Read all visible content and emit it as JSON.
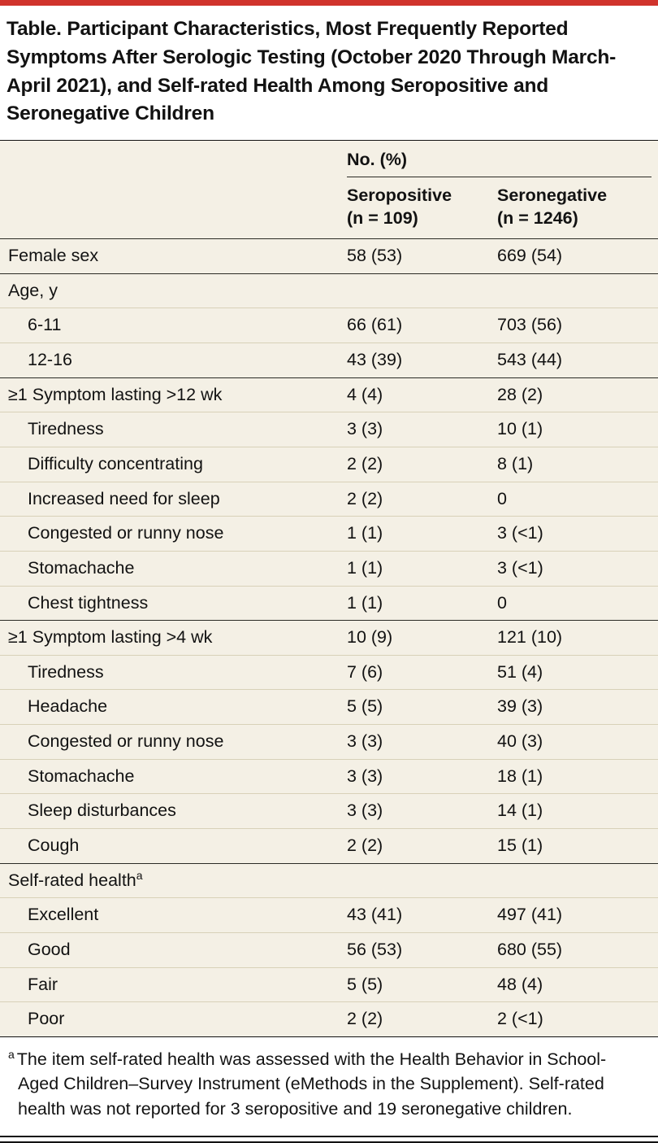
{
  "title": "Table. Participant Characteristics, Most Frequently Reported Symptoms After Serologic Testing (October 2020 Through March-April 2021), and Self-rated Health Among Seropositive and Seronegative Children",
  "table": {
    "group_header": "No. (%)",
    "columns": [
      {
        "label": "Seropositive\n(n = 109)"
      },
      {
        "label": "Seronegative\n(n = 1246)"
      }
    ],
    "rows": [
      {
        "label": "Female sex",
        "section": true,
        "indent": 0,
        "seropositive": "58 (53)",
        "seronegative": "669 (54)"
      },
      {
        "label": "Age, y",
        "section": true,
        "indent": 0,
        "seropositive": "",
        "seronegative": ""
      },
      {
        "label": "6-11",
        "section": false,
        "indent": 1,
        "seropositive": "66 (61)",
        "seronegative": "703 (56)"
      },
      {
        "label": "12-16",
        "section": false,
        "indent": 1,
        "seropositive": "43 (39)",
        "seronegative": "543 (44)"
      },
      {
        "label": "≥1 Symptom lasting >12 wk",
        "section": true,
        "indent": 0,
        "seropositive": "4 (4)",
        "seronegative": "28 (2)"
      },
      {
        "label": "Tiredness",
        "section": false,
        "indent": 1,
        "seropositive": "3 (3)",
        "seronegative": "10 (1)"
      },
      {
        "label": "Difficulty concentrating",
        "section": false,
        "indent": 1,
        "seropositive": "2 (2)",
        "seronegative": "8 (1)"
      },
      {
        "label": "Increased need for sleep",
        "section": false,
        "indent": 1,
        "seropositive": "2 (2)",
        "seronegative": "0"
      },
      {
        "label": "Congested or runny nose",
        "section": false,
        "indent": 1,
        "seropositive": "1 (1)",
        "seronegative": "3 (<1)"
      },
      {
        "label": "Stomachache",
        "section": false,
        "indent": 1,
        "seropositive": "1 (1)",
        "seronegative": "3 (<1)"
      },
      {
        "label": "Chest tightness",
        "section": false,
        "indent": 1,
        "seropositive": "1 (1)",
        "seronegative": "0"
      },
      {
        "label": "≥1 Symptom lasting >4 wk",
        "section": true,
        "indent": 0,
        "seropositive": "10 (9)",
        "seronegative": "121 (10)"
      },
      {
        "label": "Tiredness",
        "section": false,
        "indent": 1,
        "seropositive": "7 (6)",
        "seronegative": "51 (4)"
      },
      {
        "label": "Headache",
        "section": false,
        "indent": 1,
        "seropositive": "5 (5)",
        "seronegative": "39 (3)"
      },
      {
        "label": "Congested or runny nose",
        "section": false,
        "indent": 1,
        "seropositive": "3 (3)",
        "seronegative": "40 (3)"
      },
      {
        "label": "Stomachache",
        "section": false,
        "indent": 1,
        "seropositive": "3 (3)",
        "seronegative": "18 (1)"
      },
      {
        "label": "Sleep disturbances",
        "section": false,
        "indent": 1,
        "seropositive": "3 (3)",
        "seronegative": "14 (1)"
      },
      {
        "label": "Cough",
        "section": false,
        "indent": 1,
        "seropositive": "2 (2)",
        "seronegative": "15 (1)"
      },
      {
        "label": "Self-rated health",
        "sup": "a",
        "section": true,
        "indent": 0,
        "seropositive": "",
        "seronegative": ""
      },
      {
        "label": "Excellent",
        "section": false,
        "indent": 1,
        "seropositive": "43 (41)",
        "seronegative": "497 (41)"
      },
      {
        "label": "Good",
        "section": false,
        "indent": 1,
        "seropositive": "56 (53)",
        "seronegative": "680 (55)"
      },
      {
        "label": "Fair",
        "section": false,
        "indent": 1,
        "seropositive": "5 (5)",
        "seronegative": "48 (4)"
      },
      {
        "label": "Poor",
        "section": false,
        "indent": 1,
        "seropositive": "2 (2)",
        "seronegative": "2 (<1)"
      }
    ]
  },
  "footnote": {
    "marker": "a",
    "text": "The item self-rated health was assessed with the Health Behavior in School-Aged Children–Survey Instrument (eMethods in the Supplement). Self-rated health was not reported for 3 seropositive and 19 seronegative children."
  },
  "colors": {
    "accent_red": "#d0332c",
    "table_background": "#f4f0e5"
  }
}
